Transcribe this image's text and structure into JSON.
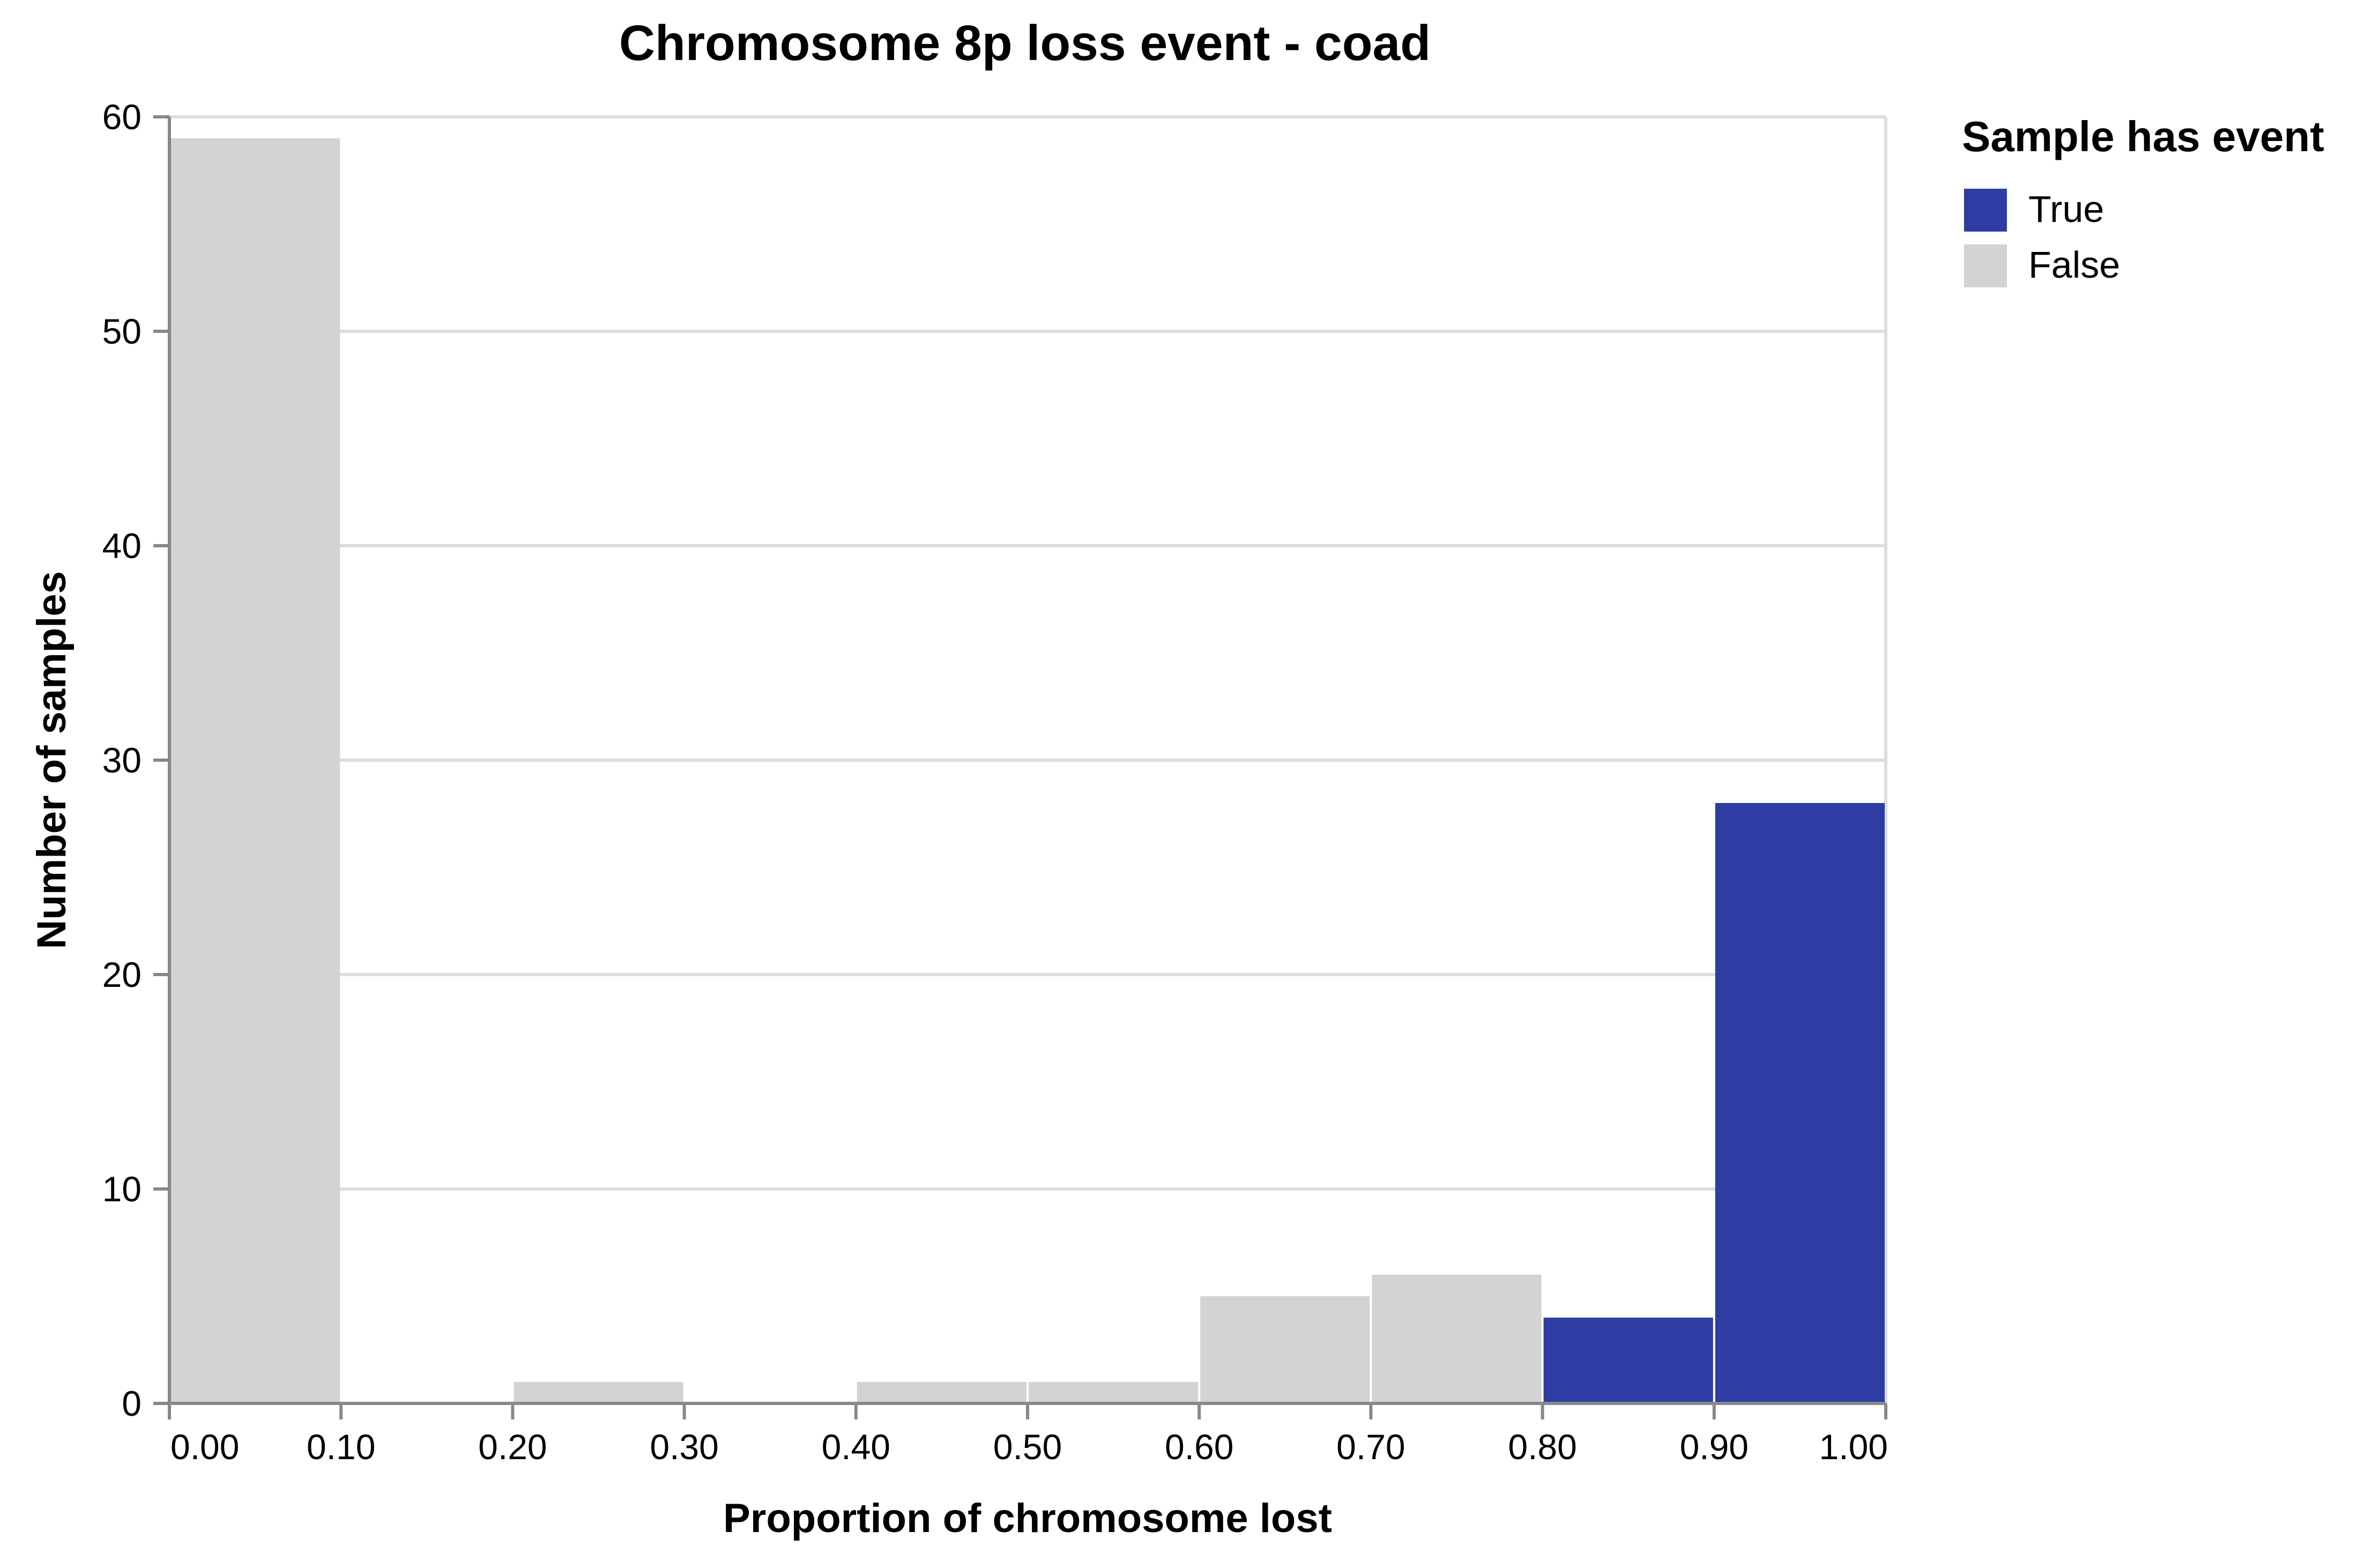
{
  "chart_data": {
    "type": "bar",
    "title": "Chromosome 8p loss event - coad",
    "xlabel": "Proportion of chromosome lost",
    "ylabel": "Number of samples",
    "xlim": [
      0,
      1
    ],
    "ylim": [
      0,
      60
    ],
    "x_ticks": [
      "0.00",
      "0.10",
      "0.20",
      "0.30",
      "0.40",
      "0.50",
      "0.60",
      "0.70",
      "0.80",
      "0.90",
      "1.00"
    ],
    "y_ticks": [
      "0",
      "10",
      "20",
      "30",
      "40",
      "50",
      "60"
    ],
    "grid": "horizontal",
    "legend": {
      "title": "Sample has event",
      "placement": "right",
      "entries": [
        {
          "label": "True",
          "color": "#2e3ca3"
        },
        {
          "label": "False",
          "color": "#d3d3d3"
        }
      ]
    },
    "bins": [
      {
        "x0": 0.0,
        "x1": 0.1,
        "count": 59,
        "event": "False"
      },
      {
        "x0": 0.1,
        "x1": 0.2,
        "count": 0,
        "event": "False"
      },
      {
        "x0": 0.2,
        "x1": 0.3,
        "count": 1,
        "event": "False"
      },
      {
        "x0": 0.3,
        "x1": 0.4,
        "count": 0,
        "event": "False"
      },
      {
        "x0": 0.4,
        "x1": 0.5,
        "count": 1,
        "event": "False"
      },
      {
        "x0": 0.5,
        "x1": 0.6,
        "count": 1,
        "event": "False"
      },
      {
        "x0": 0.6,
        "x1": 0.7,
        "count": 5,
        "event": "False"
      },
      {
        "x0": 0.7,
        "x1": 0.8,
        "count": 6,
        "event": "False"
      },
      {
        "x0": 0.8,
        "x1": 0.9,
        "count": 4,
        "event": "True"
      },
      {
        "x0": 0.9,
        "x1": 1.0,
        "count": 28,
        "event": "True"
      }
    ]
  }
}
